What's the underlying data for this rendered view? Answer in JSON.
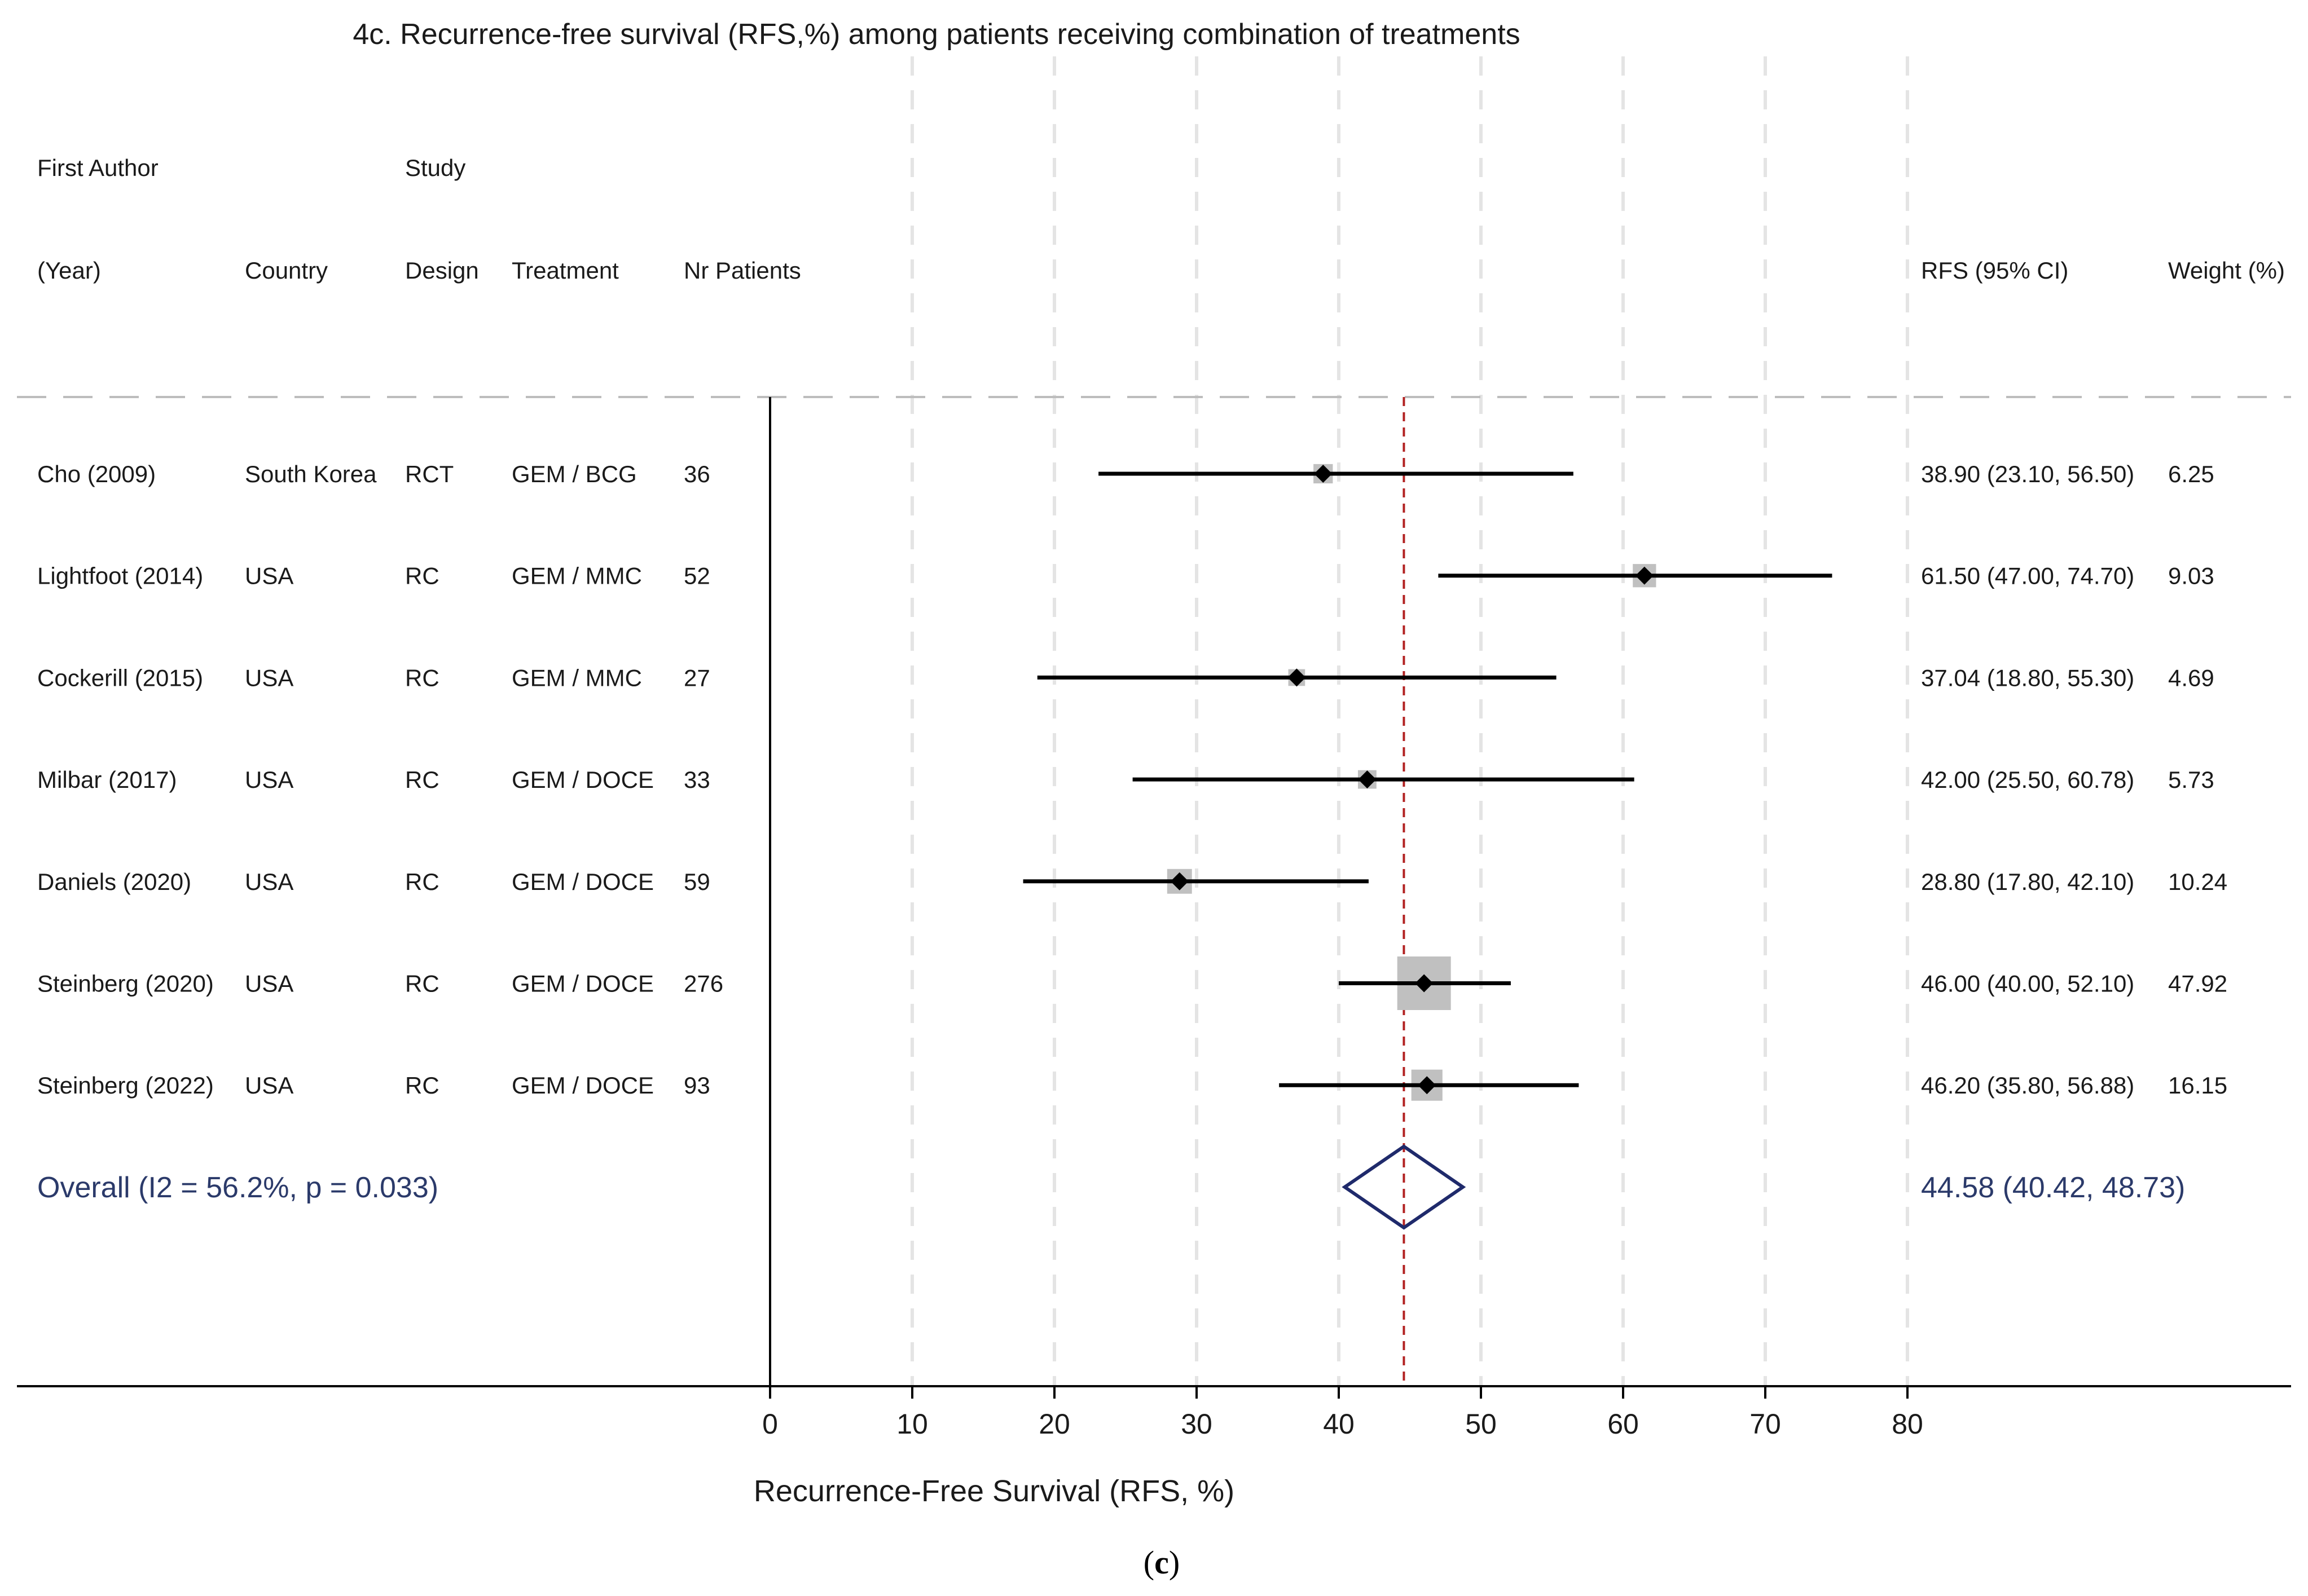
{
  "chart_data": {
    "type": "forest",
    "title": "4c. Recurrence-free survival (RFS,%) among patients receiving combination of treatments",
    "caption": "(c)",
    "bold_letter": "c",
    "xlabel": "Recurrence-Free Survival (RFS, %)",
    "xlim": [
      0,
      80
    ],
    "xticks": [
      0,
      10,
      20,
      30,
      40,
      50,
      60,
      70,
      80
    ],
    "reference_line": 44.58,
    "header": {
      "author_top": "First Author",
      "author_bottom": "(Year)",
      "country": "Country",
      "design_top": "Study",
      "design_bottom": "Design",
      "treatment": "Treatment",
      "patients": "Nr Patients",
      "rfs": "RFS (95% CI)",
      "weight": "Weight (%)"
    },
    "studies": [
      {
        "author": "Cho (2009)",
        "country": "South Korea",
        "design": "RCT",
        "treatment": "GEM / BCG",
        "patients": "36",
        "rfs": 38.9,
        "lower": 23.1,
        "upper": 56.5,
        "ci_text": "38.90 (23.10, 56.50)",
        "weight": 6.25,
        "weight_text": "6.25"
      },
      {
        "author": "Lightfoot (2014)",
        "country": "USA",
        "design": "RC",
        "treatment": "GEM / MMC",
        "patients": "52",
        "rfs": 61.5,
        "lower": 47.0,
        "upper": 74.7,
        "ci_text": "61.50 (47.00, 74.70)",
        "weight": 9.03,
        "weight_text": "9.03"
      },
      {
        "author": "Cockerill (2015)",
        "country": "USA",
        "design": "RC",
        "treatment": "GEM / MMC",
        "patients": "27",
        "rfs": 37.04,
        "lower": 18.8,
        "upper": 55.3,
        "ci_text": "37.04 (18.80, 55.30)",
        "weight": 4.69,
        "weight_text": "4.69"
      },
      {
        "author": "Milbar (2017)",
        "country": "USA",
        "design": "RC",
        "treatment": "GEM / DOCE",
        "patients": "33",
        "rfs": 42.0,
        "lower": 25.5,
        "upper": 60.78,
        "ci_text": "42.00 (25.50, 60.78)",
        "weight": 5.73,
        "weight_text": "5.73"
      },
      {
        "author": "Daniels (2020)",
        "country": "USA",
        "design": "RC",
        "treatment": "GEM / DOCE",
        "patients": "59",
        "rfs": 28.8,
        "lower": 17.8,
        "upper": 42.1,
        "ci_text": "28.80 (17.80, 42.10)",
        "weight": 10.24,
        "weight_text": "10.24"
      },
      {
        "author": "Steinberg (2020)",
        "country": "USA",
        "design": "RC",
        "treatment": "GEM / DOCE",
        "patients": "276",
        "rfs": 46.0,
        "lower": 40.0,
        "upper": 52.1,
        "ci_text": "46.00 (40.00, 52.10)",
        "weight": 47.92,
        "weight_text": "47.92"
      },
      {
        "author": "Steinberg (2022)",
        "country": "USA",
        "design": "RC",
        "treatment": "GEM / DOCE",
        "patients": "93",
        "rfs": 46.2,
        "lower": 35.8,
        "upper": 56.88,
        "ci_text": "46.20 (35.80, 56.88)",
        "weight": 16.15,
        "weight_text": "16.15"
      }
    ],
    "overall": {
      "label": "Overall  (I2 = 56.2%, p = 0.033)",
      "rfs": 44.58,
      "lower": 40.42,
      "upper": 48.73,
      "ci_text": "44.58 (40.42, 48.73)"
    },
    "colors": {
      "overall": "#1f2a6b",
      "overall_text": "#2b3a6a",
      "reference": "#b22222",
      "weight_box": "#c0c0c0",
      "grid": "#e4e4e4",
      "header_rule": "#bdbdbd"
    }
  }
}
